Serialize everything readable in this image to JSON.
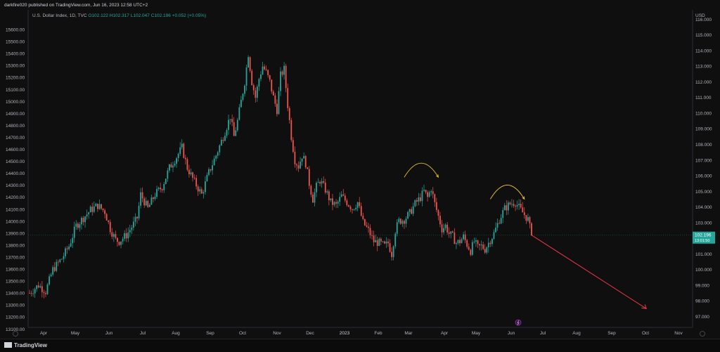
{
  "header": {
    "publish_line": "darkfire020 published on TradingView.com, Jun 16, 2023 12:58 UTC+2",
    "symbol": "U.S. Dollar Index, 1D, TVC",
    "ohlc": {
      "o": "O102.122",
      "h": "H102.317",
      "l": "L102.047",
      "c": "C102.196",
      "chg": "+0.052 (+0.05%)"
    }
  },
  "footer": {
    "brand": "TradingView"
  },
  "chart_data": {
    "type": "candlestick",
    "currency": "USD",
    "left_axis": {
      "ticks": [
        "15600.00",
        "15500.00",
        "15400.00",
        "15300.00",
        "15200.00",
        "15100.00",
        "15000.00",
        "14900.00",
        "14800.00",
        "14700.00",
        "14600.00",
        "14500.00",
        "14400.00",
        "14300.00",
        "14200.00",
        "14100.00",
        "14000.00",
        "13900.00",
        "13800.00",
        "13700.00",
        "13600.00",
        "13500.00",
        "13400.00",
        "13300.00",
        "13200.00",
        "13100.00"
      ]
    },
    "right_axis": {
      "ticks": [
        "116.000",
        "115.000",
        "114.000",
        "113.000",
        "112.000",
        "111.000",
        "110.000",
        "109.000",
        "108.000",
        "107.000",
        "106.000",
        "105.000",
        "104.000",
        "103.000",
        "102.000",
        "101.000",
        "100.000",
        "99.000",
        "98.000",
        "97.000"
      ],
      "ylim": [
        96.3,
        116.6
      ]
    },
    "x_axis": {
      "ticks": [
        "Apr",
        "May",
        "Jun",
        "Jul",
        "Aug",
        "Sep",
        "Oct",
        "Nov",
        "Dec",
        "2023",
        "Feb",
        "Mar",
        "Apr",
        "May",
        "Jun",
        "Jul",
        "Aug",
        "Sep",
        "Oct",
        "Nov"
      ]
    },
    "last_price": {
      "value": 102.196,
      "label": "102.196",
      "countdown": "13:01:50"
    },
    "path_points": [
      [
        0,
        98.5
      ],
      [
        5,
        99.0
      ],
      [
        9,
        98.6
      ],
      [
        13,
        100.0
      ],
      [
        18,
        100.7
      ],
      [
        22,
        101.5
      ],
      [
        26,
        102.8
      ],
      [
        30,
        103.3
      ],
      [
        34,
        103.8
      ],
      [
        38,
        104.1
      ],
      [
        42,
        103.7
      ],
      [
        45,
        102.6
      ],
      [
        48,
        101.9
      ],
      [
        50,
        101.8
      ],
      [
        54,
        102.2
      ],
      [
        58,
        102.9
      ],
      [
        60,
        103.3
      ],
      [
        62,
        104.8
      ],
      [
        66,
        103.9
      ],
      [
        70,
        104.8
      ],
      [
        74,
        105.3
      ],
      [
        78,
        106.5
      ],
      [
        82,
        107.2
      ],
      [
        85,
        107.8
      ],
      [
        88,
        106.5
      ],
      [
        92,
        105.6
      ],
      [
        96,
        104.8
      ],
      [
        100,
        106.2
      ],
      [
        104,
        107.3
      ],
      [
        108,
        108.5
      ],
      [
        112,
        109.8
      ],
      [
        114,
        108.5
      ],
      [
        116,
        109.5
      ],
      [
        120,
        112.0
      ],
      [
        122,
        113.8
      ],
      [
        124,
        112.0
      ],
      [
        126,
        111.0
      ],
      [
        128,
        112.2
      ],
      [
        130,
        113.0
      ],
      [
        132,
        112.6
      ],
      [
        134,
        112.0
      ],
      [
        136,
        111.0
      ],
      [
        138,
        110.2
      ],
      [
        140,
        112.4
      ],
      [
        142,
        112.8
      ],
      [
        144,
        110.5
      ],
      [
        146,
        108.5
      ],
      [
        148,
        107.0
      ],
      [
        150,
        106.6
      ],
      [
        152,
        107.3
      ],
      [
        154,
        106.8
      ],
      [
        156,
        105.5
      ],
      [
        158,
        104.5
      ],
      [
        160,
        105.3
      ],
      [
        162,
        105.7
      ],
      [
        165,
        105.1
      ],
      [
        168,
        104.3
      ],
      [
        171,
        104.1
      ],
      [
        174,
        104.7
      ],
      [
        177,
        104.3
      ],
      [
        180,
        103.9
      ],
      [
        183,
        104.3
      ],
      [
        186,
        103.0
      ],
      [
        189,
        102.5
      ],
      [
        192,
        101.8
      ],
      [
        195,
        101.7
      ],
      [
        198,
        101.5
      ],
      [
        200,
        101.7
      ],
      [
        202,
        101.0
      ],
      [
        204,
        102.5
      ],
      [
        206,
        103.1
      ],
      [
        209,
        103.2
      ],
      [
        212,
        103.6
      ],
      [
        215,
        104.2
      ],
      [
        218,
        104.6
      ],
      [
        220,
        105.0
      ],
      [
        222,
        104.6
      ],
      [
        224,
        105.2
      ],
      [
        226,
        104.2
      ],
      [
        228,
        103.4
      ],
      [
        230,
        102.6
      ],
      [
        232,
        102.8
      ],
      [
        234,
        102.3
      ],
      [
        236,
        102.1
      ],
      [
        238,
        101.7
      ],
      [
        240,
        101.8
      ],
      [
        242,
        102.1
      ],
      [
        244,
        101.6
      ],
      [
        246,
        101.2
      ],
      [
        248,
        101.8
      ],
      [
        250,
        101.4
      ],
      [
        252,
        101.5
      ],
      [
        254,
        101.3
      ],
      [
        256,
        101.7
      ],
      [
        259,
        102.3
      ],
      [
        262,
        103.2
      ],
      [
        265,
        103.9
      ],
      [
        268,
        104.2
      ],
      [
        271,
        104.3
      ],
      [
        274,
        103.8
      ],
      [
        276,
        103.5
      ],
      [
        278,
        103.2
      ],
      [
        280,
        102.2
      ]
    ],
    "annotations": [
      {
        "type": "arc-arrow",
        "color": "#e6c229",
        "from_bar": 209,
        "to_bar": 228,
        "base": 105.9,
        "peak": 106.8
      },
      {
        "type": "arc-arrow",
        "color": "#e6c229",
        "from_bar": 257,
        "to_bar": 276,
        "base": 104.5,
        "peak": 105.4
      },
      {
        "type": "arrow",
        "color": "#f23645",
        "from": [
          280,
          102.2
        ],
        "to": [
          344,
          97.5
        ]
      }
    ]
  }
}
